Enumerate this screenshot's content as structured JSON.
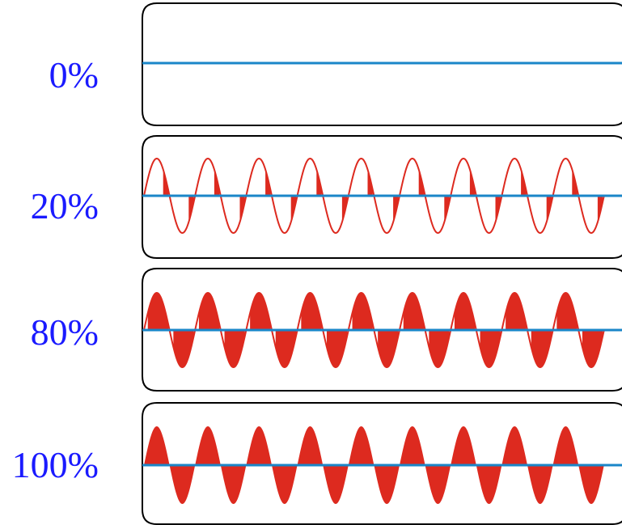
{
  "colors": {
    "label": "#1a1aff",
    "wave": "#dd2a1f",
    "baseline": "#1a86c8",
    "frame": "#000000"
  },
  "rows": [
    {
      "label": "0%",
      "duty": 0.0
    },
    {
      "label": "20%",
      "duty": 0.2
    },
    {
      "label": "80%",
      "duty": 0.8
    },
    {
      "label": "100%",
      "duty": 1.0
    }
  ]
}
